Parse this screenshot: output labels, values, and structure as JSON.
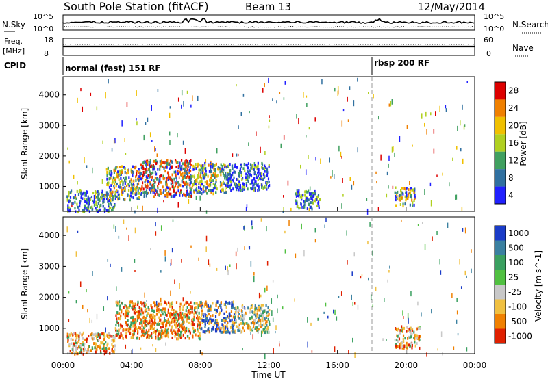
{
  "header": {
    "title": "South Pole Station (fitACF)",
    "beam": "Beam 13",
    "date": "12/May/2014"
  },
  "noise_panel": {
    "left_label": "N.Sky",
    "right_label": "N.Search",
    "left_ticks": [
      "10^5",
      "10^0"
    ],
    "right_ticks": [
      "10^5",
      "10^0"
    ]
  },
  "freq_panel": {
    "left_label_1": "Freq.",
    "left_label_2": "[MHz]",
    "left_ticks": [
      "18",
      "8"
    ],
    "right_label": "Nave",
    "right_ticks": [
      "60",
      "0"
    ]
  },
  "cpid": {
    "label": "CPID",
    "segments": [
      {
        "start_hour": 0,
        "text": "normal (fast) 151 RF"
      },
      {
        "start_hour": 18,
        "text": "rbsp 200 RF"
      }
    ]
  },
  "x_axis": {
    "label": "Time UT",
    "ticks": [
      "00:00",
      "04:00",
      "08:00",
      "12:00",
      "16:00",
      "20:00",
      "00:00"
    ],
    "range_hours": [
      0,
      24
    ]
  },
  "chart_data": [
    {
      "type": "heatmap",
      "quantity": "Power",
      "ylabel": "Slant Range [km]",
      "ylim": [
        180,
        4600
      ],
      "yticks": [
        1000,
        2000,
        3000,
        4000
      ],
      "colorbar_label": "Power [dB]",
      "colorbar_ticks": [
        "28",
        "24",
        "20",
        "16",
        "12",
        "8",
        "4"
      ],
      "colorbar_colors": [
        "#dd0000",
        "#f08000",
        "#f0c000",
        "#b0d020",
        "#40a060",
        "#3070a0",
        "#2020ff"
      ],
      "regions": [
        {
          "t_start": 0.2,
          "t_end": 3.0,
          "r_start": 200,
          "r_end": 900,
          "level": "low"
        },
        {
          "t_start": 2.5,
          "t_end": 4.5,
          "r_start": 600,
          "r_end": 1700,
          "level": "mid"
        },
        {
          "t_start": 4.5,
          "t_end": 7.5,
          "r_start": 700,
          "r_end": 1900,
          "level": "high"
        },
        {
          "t_start": 7.5,
          "t_end": 9.5,
          "r_start": 800,
          "r_end": 1800,
          "level": "mid"
        },
        {
          "t_start": 9.5,
          "t_end": 12.0,
          "r_start": 900,
          "r_end": 1800,
          "level": "low"
        },
        {
          "t_start": 13.5,
          "t_end": 15.0,
          "r_start": 300,
          "r_end": 900,
          "level": "low"
        },
        {
          "t_start": 19.3,
          "t_end": 20.5,
          "r_start": 400,
          "r_end": 1000,
          "level": "mid"
        }
      ]
    },
    {
      "type": "heatmap",
      "quantity": "Velocity",
      "ylabel": "Slant Range [km]",
      "ylim": [
        180,
        4600
      ],
      "yticks": [
        1000,
        2000,
        3000,
        4000
      ],
      "colorbar_label": "Velocity [m s^-1]",
      "colorbar_ticks": [
        "1000",
        "500",
        "100",
        "25",
        "-25",
        "-100",
        "-500",
        "-1000"
      ],
      "colorbar_colors": [
        "#1a3cc8",
        "#3a80a0",
        "#3aa060",
        "#50c040",
        "#c8c8c8",
        "#f0c040",
        "#f08000",
        "#e02000"
      ],
      "regions": [
        {
          "t_start": 0.2,
          "t_end": 3.0,
          "r_start": 200,
          "r_end": 900,
          "level": "toward"
        },
        {
          "t_start": 3.0,
          "t_end": 8.0,
          "r_start": 700,
          "r_end": 1900,
          "level": "toward-strong"
        },
        {
          "t_start": 8.0,
          "t_end": 10.0,
          "r_start": 900,
          "r_end": 1900,
          "level": "away"
        },
        {
          "t_start": 10.0,
          "t_end": 12.0,
          "r_start": 900,
          "r_end": 1800,
          "level": "mixed"
        },
        {
          "t_start": 19.3,
          "t_end": 20.8,
          "r_start": 400,
          "r_end": 1100,
          "level": "toward"
        }
      ]
    }
  ]
}
